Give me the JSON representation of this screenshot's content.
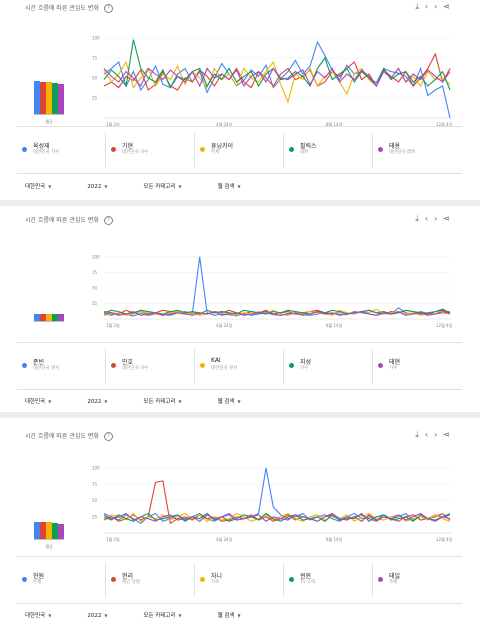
{
  "panels": [
    {
      "title": "시간 흐름에 따른 관심도 변화",
      "avg_label": "평균",
      "avg_values": [
        85,
        83,
        82,
        79,
        77
      ],
      "chart_data": {
        "type": "line",
        "x_ticks": [
          "1월 2일",
          "4월 24일",
          "8월 14일",
          "12월 4일"
        ],
        "y_ticks": [
          "100",
          "75",
          "50",
          "25"
        ],
        "ylim": [
          0,
          100
        ],
        "series": [
          {
            "name": "육성재",
            "color": "#4285f4",
            "values": [
              55,
              62,
              70,
              40,
              58,
              35,
              48,
              65,
              42,
              38,
              55,
              62,
              45,
              58,
              32,
              50,
              68,
              55,
              40,
              47,
              60,
              52,
              66,
              38,
              49,
              58,
              72,
              55,
              65,
              95,
              78,
              60,
              48,
              66,
              55,
              58,
              50,
              44,
              62,
              58,
              56,
              52,
              40,
              62,
              28,
              35,
              40,
              0
            ]
          },
          {
            "name": "기현",
            "color": "#db4437",
            "values": [
              40,
              45,
              38,
              52,
              47,
              60,
              35,
              42,
              58,
              40,
              35,
              50,
              45,
              60,
              52,
              40,
              55,
              48,
              62,
              45,
              38,
              58,
              50,
              40,
              55,
              62,
              48,
              52,
              60,
              40,
              45,
              58,
              52,
              62,
              70,
              48,
              55,
              40,
              60,
              52,
              45,
              58,
              40,
              50,
              62,
              80,
              45,
              62
            ]
          },
          {
            "name": "휴닝카이",
            "color": "#f4b400",
            "values": [
              60,
              45,
              55,
              70,
              38,
              50,
              62,
              40,
              55,
              48,
              65,
              42,
              58,
              50,
              38,
              62,
              48,
              55,
              40,
              62,
              50,
              45,
              58,
              70,
              42,
              20,
              55,
              48,
              62,
              40,
              52,
              58,
              45,
              30,
              55,
              62,
              48,
              40,
              58,
              50,
              62,
              45,
              52,
              40,
              58,
              48,
              50,
              42
            ]
          },
          {
            "name": "필릭스",
            "color": "#0f9d58",
            "values": [
              48,
              60,
              52,
              40,
              98,
              62,
              50,
              45,
              60,
              38,
              52,
              48,
              58,
              62,
              40,
              55,
              48,
              62,
              45,
              52,
              58,
              40,
              55,
              62,
              48,
              50,
              58,
              52,
              40,
              62,
              75,
              48,
              55,
              62,
              45,
              58,
              50,
              40,
              62,
              48,
              55,
              58,
              45,
              52,
              40,
              48,
              58,
              35
            ]
          },
          {
            "name": "태용",
            "color": "#ab47bc",
            "values": [
              62,
              52,
              45,
              58,
              50,
              40,
              62,
              55,
              48,
              60,
              52,
              45,
              58,
              40,
              62,
              50,
              55,
              48,
              60,
              40,
              52,
              58,
              45,
              62,
              50,
              48,
              55,
              60,
              42,
              58,
              50,
              62,
              45,
              55,
              48,
              60,
              52,
              40,
              58,
              50,
              62,
              45,
              55,
              48,
              60,
              52,
              45,
              58
            ]
          }
        ]
      },
      "legend": [
        {
          "name": "육성재",
          "sub": "대한민국 가수",
          "color": "#4285f4"
        },
        {
          "name": "기현",
          "sub": "대한민국 가수",
          "color": "#db4437"
        },
        {
          "name": "휴닝카이",
          "sub": "주제",
          "color": "#f4b400"
        },
        {
          "name": "필릭스",
          "sub": "래퍼",
          "color": "#0f9d58"
        },
        {
          "name": "태용",
          "sub": "대한민국 래퍼",
          "color": "#ab47bc"
        }
      ],
      "filters": [
        "대한민국",
        "2022",
        "모든 카테고리",
        "웹 검색"
      ]
    },
    {
      "title": "시간 흐름에 따른 관심도 변화",
      "avg_label": "",
      "avg_values": [
        20,
        20,
        20,
        20,
        20
      ],
      "chart_data": {
        "type": "line",
        "x_ticks": [
          "1월 2일",
          "4월 24일",
          "8월 14일",
          "12월 4일"
        ],
        "y_ticks": [
          "100",
          "75",
          "50",
          "25"
        ],
        "ylim": [
          0,
          100
        ],
        "series": [
          {
            "name": "준빈",
            "color": "#4285f4",
            "values": [
              8,
              6,
              10,
              7,
              5,
              9,
              6,
              8,
              7,
              6,
              10,
              12,
              8,
              100,
              10,
              6,
              8,
              7,
              5,
              9,
              6,
              8,
              10,
              7,
              6,
              9,
              8,
              7,
              6,
              8,
              10,
              9,
              8,
              7,
              12,
              10,
              8,
              6,
              9,
              8,
              18,
              10,
              8,
              12,
              9,
              8,
              10,
              12
            ]
          },
          {
            "name": "민호",
            "color": "#db4437",
            "values": [
              12,
              10,
              8,
              14,
              10,
              12,
              8,
              10,
              14,
              12,
              10,
              8,
              12,
              10,
              8,
              12,
              10,
              14,
              10,
              8,
              12,
              10,
              14,
              8,
              10,
              12,
              8,
              10,
              12,
              14,
              10,
              8,
              12,
              10,
              8,
              12,
              14,
              10,
              8,
              12,
              10,
              14,
              12,
              8,
              10,
              12,
              14,
              10
            ]
          },
          {
            "name": "KAI",
            "color": "#f4b400",
            "values": [
              6,
              8,
              10,
              6,
              8,
              12,
              10,
              8,
              6,
              10,
              12,
              8,
              10,
              6,
              8,
              10,
              12,
              8,
              6,
              10,
              8,
              12,
              10,
              14,
              8,
              6,
              10,
              8,
              12,
              10,
              8,
              6,
              14,
              10,
              8,
              12,
              10,
              16,
              8,
              10,
              12,
              8,
              10,
              6,
              8,
              12,
              10,
              8
            ]
          },
          {
            "name": "지성",
            "color": "#0f9d58",
            "values": [
              10,
              14,
              12,
              8,
              10,
              14,
              12,
              10,
              8,
              12,
              14,
              10,
              12,
              8,
              14,
              10,
              12,
              10,
              8,
              14,
              12,
              10,
              8,
              12,
              10,
              14,
              12,
              10,
              8,
              12,
              10,
              14,
              12,
              8,
              10,
              12,
              14,
              10,
              12,
              8,
              10,
              14,
              12,
              10,
              8,
              12,
              16,
              10
            ]
          },
          {
            "name": "태현",
            "color": "#ab47bc",
            "values": [
              8,
              10,
              6,
              8,
              12,
              6,
              8,
              10,
              6,
              8,
              10,
              8,
              6,
              10,
              8,
              12,
              6,
              8,
              10,
              6,
              8,
              10,
              12,
              8,
              6,
              8,
              10,
              6,
              8,
              12,
              8,
              10,
              6,
              8,
              10,
              12,
              8,
              6,
              10,
              8,
              12,
              6,
              8,
              10,
              6,
              8,
              12,
              8
            ]
          }
        ]
      },
      "legend": [
        {
          "name": "준빈",
          "sub": "대한민국 댄서",
          "color": "#4285f4"
        },
        {
          "name": "민호",
          "sub": "대한민국 가수",
          "color": "#db4437"
        },
        {
          "name": "KAI",
          "sub": "대한민국 댄서",
          "color": "#f4b400"
        },
        {
          "name": "지성",
          "sub": "가수",
          "color": "#0f9d58"
        },
        {
          "name": "태현",
          "sub": "가수",
          "color": "#ab47bc"
        }
      ],
      "filters": [
        "대한민국",
        "2022",
        "모든 카테고리",
        "웹 검색"
      ]
    },
    {
      "title": "시간 흐름에 따른 관심도 변화",
      "avg_label": "평균",
      "avg_values": [
        45,
        45,
        44,
        43,
        40
      ],
      "chart_data": {
        "type": "line",
        "x_ticks": [
          "1월 2일",
          "4월 24일",
          "8월 14일",
          "12월 4일"
        ],
        "y_ticks": [
          "100",
          "75",
          "50",
          "25"
        ],
        "ylim": [
          0,
          100
        ],
        "series": [
          {
            "name": "헌원",
            "color": "#4285f4",
            "values": [
              30,
              25,
              20,
              28,
              22,
              15,
              25,
              30,
              18,
              22,
              28,
              20,
              25,
              30,
              22,
              18,
              25,
              28,
              20,
              22,
              25,
              30,
              100,
              40,
              28,
              22,
              25,
              30,
              20,
              25,
              28,
              22,
              18,
              25,
              30,
              22,
              25,
              20,
              28,
              22,
              25,
              30,
              20,
              25,
              22,
              28,
              25,
              30
            ]
          },
          {
            "name": "현리",
            "color": "#db4437",
            "values": [
              20,
              25,
              18,
              22,
              28,
              20,
              25,
              78,
              80,
              15,
              22,
              25,
              20,
              28,
              22,
              25,
              18,
              20,
              25,
              22,
              28,
              20,
              25,
              18,
              22,
              28,
              20,
              25,
              22,
              18,
              25,
              28,
              20,
              22,
              25,
              18,
              28,
              20,
              25,
              22,
              18,
              25,
              28,
              20,
              22,
              25,
              30,
              20
            ]
          },
          {
            "name": "자니",
            "color": "#f4b400",
            "values": [
              22,
              28,
              25,
              20,
              30,
              18,
              25,
              22,
              28,
              20,
              25,
              30,
              22,
              28,
              18,
              25,
              20,
              22,
              30,
              25,
              18,
              22,
              28,
              20,
              25,
              30,
              22,
              18,
              25,
              28,
              20,
              25,
              22,
              28,
              18,
              25,
              30,
              22,
              20,
              25,
              28,
              18,
              22,
              25,
              20,
              28,
              22,
              18
            ]
          },
          {
            "name": "윈윈",
            "color": "#0f9d58",
            "values": [
              25,
              20,
              28,
              22,
              18,
              25,
              30,
              20,
              22,
              25,
              28,
              18,
              25,
              22,
              30,
              20,
              25,
              18,
              22,
              28,
              25,
              20,
              30,
              22,
              18,
              25,
              28,
              20,
              22,
              25,
              18,
              28,
              20,
              25,
              22,
              30,
              18,
              25,
              28,
              20,
              22,
              25,
              18,
              28,
              22,
              20,
              25,
              28
            ]
          },
          {
            "name": "태일",
            "color": "#ab47bc",
            "values": [
              28,
              22,
              25,
              30,
              20,
              25,
              22,
              18,
              25,
              28,
              20,
              22,
              25,
              18,
              28,
              22,
              25,
              30,
              20,
              22,
              25,
              28,
              18,
              25,
              22,
              20,
              28,
              25,
              22,
              18,
              25,
              30,
              22,
              20,
              25,
              28,
              22,
              18,
              25,
              22,
              28,
              20,
              25,
              30,
              22,
              18,
              25,
              22
            ]
          }
        ]
      },
      "legend": [
        {
          "name": "헌원",
          "sub": "주제",
          "color": "#4285f4"
        },
        {
          "name": "현리",
          "sub": "제인 뮤컬",
          "color": "#db4437"
        },
        {
          "name": "자니",
          "sub": "가수",
          "color": "#f4b400"
        },
        {
          "name": "윈윈",
          "sub": "TV 스타",
          "color": "#0f9d58"
        },
        {
          "name": "태일",
          "sub": "주제",
          "color": "#ab47bc"
        }
      ],
      "filters": [
        "대한민국",
        "2022",
        "모든 카테고리",
        "웹 검색"
      ]
    }
  ],
  "icons": {
    "download": "download-icon",
    "embed": "embed-icon",
    "share": "share-icon",
    "help": "help-icon"
  }
}
